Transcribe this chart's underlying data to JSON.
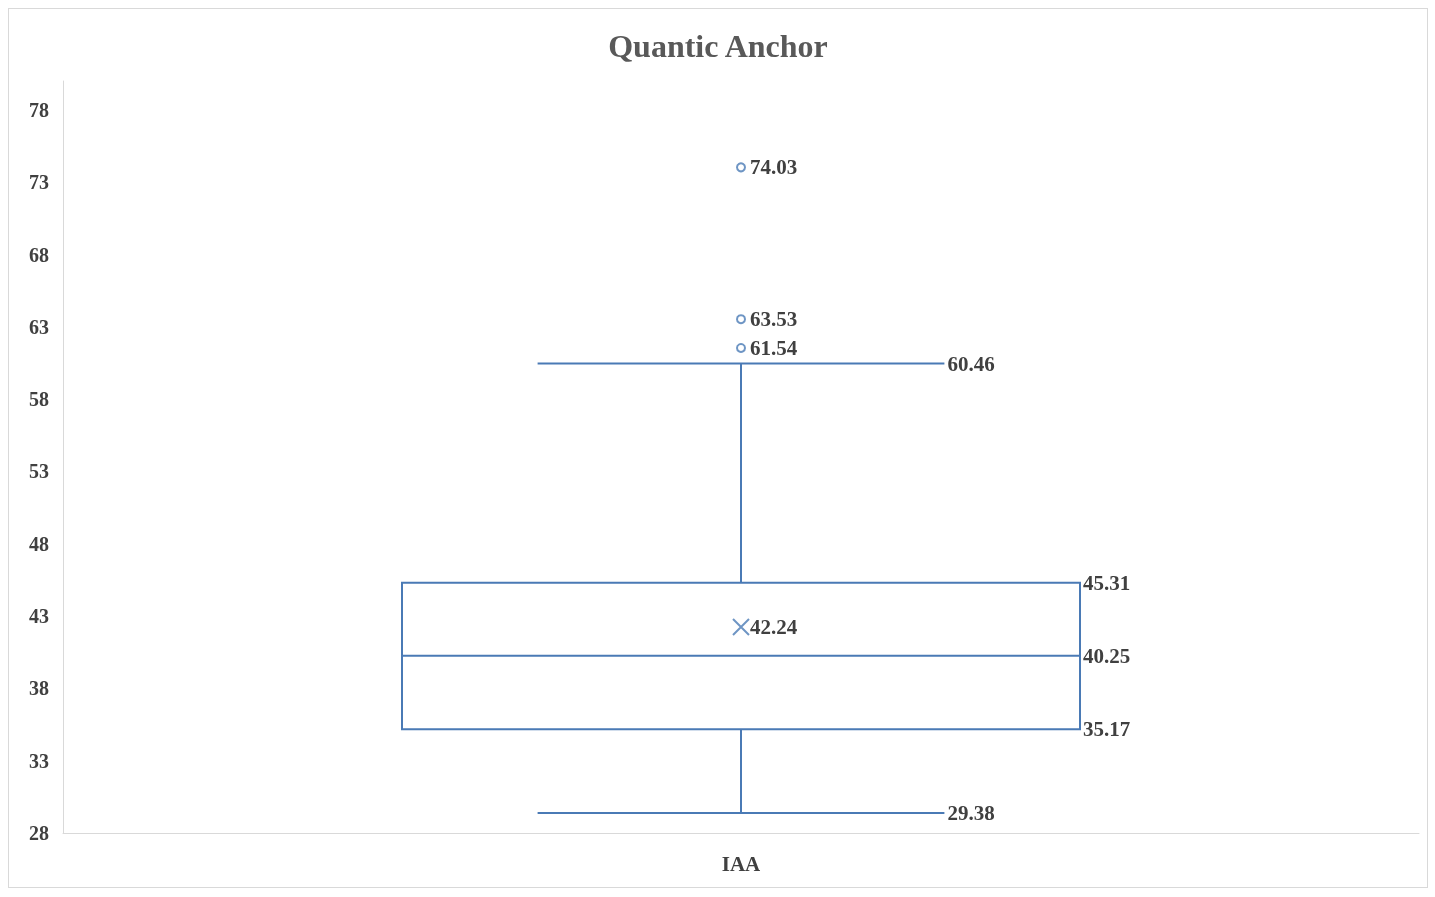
{
  "chart_data": {
    "type": "box",
    "title": "Quantic Anchor",
    "categories": [
      "IAA"
    ],
    "boxes": [
      {
        "low": 29.38,
        "q1": 35.17,
        "median": 40.25,
        "q3": 45.31,
        "high": 60.46,
        "mean": 42.24,
        "outliers": [
          61.54,
          63.53,
          74.03
        ]
      }
    ],
    "color": "#4a7ab5",
    "ylim": [
      28,
      80
    ],
    "yticks": [
      28,
      33,
      38,
      43,
      48,
      53,
      58,
      63,
      68,
      73,
      78
    ],
    "grid": false,
    "data_labels": true,
    "annotations": [
      "61.54",
      "63.53",
      "74.03",
      "60.46",
      "45.31",
      "42.24",
      "40.25",
      "35.17",
      "29.38"
    ]
  }
}
